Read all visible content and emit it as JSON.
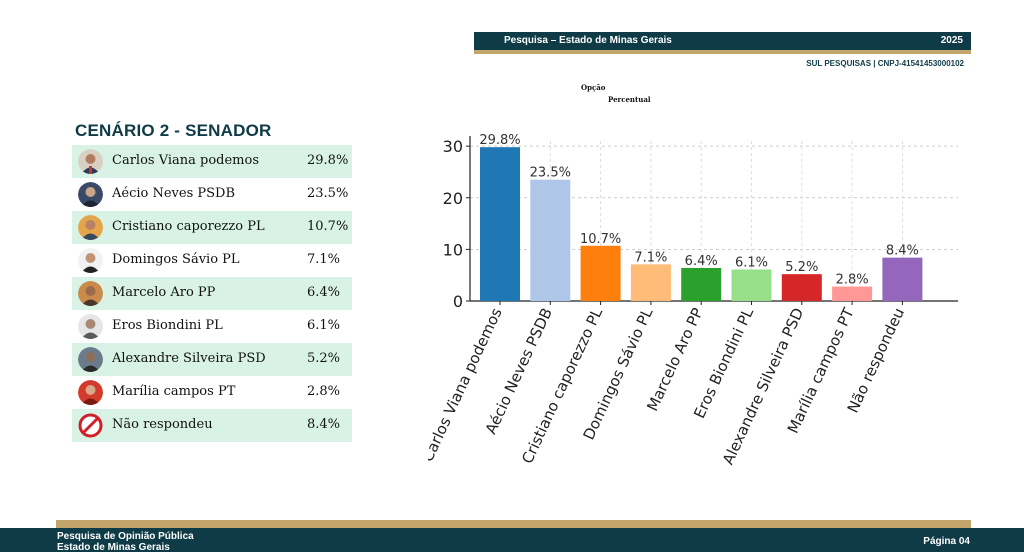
{
  "header": {
    "title": "Pesquisa – Estado de Minas Gerais",
    "year": "2025",
    "subtitle": "SUL PESQUISAS | CNPJ-41541453000102"
  },
  "chart_headers": {
    "opcao": "Opção",
    "percentual": "Percentual"
  },
  "scenario": {
    "title": "CENÁRIO 2 - SENADOR",
    "rows": [
      {
        "name": "Carlos Viana podemos",
        "pct": "29.8%"
      },
      {
        "name": "Aécio Neves PSDB",
        "pct": "23.5%"
      },
      {
        "name": "Cristiano caporezzo PL",
        "pct": "10.7%"
      },
      {
        "name": "Domingos Sávio PL",
        "pct": "7.1%"
      },
      {
        "name": "Marcelo Aro PP",
        "pct": "6.4%"
      },
      {
        "name": "Eros Biondini PL",
        "pct": "6.1%"
      },
      {
        "name": "Alexandre Silveira PSD",
        "pct": "5.2%"
      },
      {
        "name": "Marília campos PT",
        "pct": "2.8%"
      },
      {
        "name": "Não respondeu",
        "pct": "8.4%"
      }
    ]
  },
  "chart_data": {
    "type": "bar",
    "categories": [
      "Carlos Viana podemos",
      "Aécio Neves PSDB",
      "Cristiano caporezzo PL",
      "Domingos Sávio PL",
      "Marcelo Aro PP",
      "Eros Biondini PL",
      "Alexandre Silveira PSD",
      "Marília campos PT",
      "Não respondeu"
    ],
    "values": [
      29.8,
      23.5,
      10.7,
      7.1,
      6.4,
      6.1,
      5.2,
      2.8,
      8.4
    ],
    "labels": [
      "29.8%",
      "23.5%",
      "10.7%",
      "7.1%",
      "6.4%",
      "6.1%",
      "5.2%",
      "2.8%",
      "8.4%"
    ],
    "colors": [
      "#1f77b4",
      "#aec7e8",
      "#ff7f0e",
      "#ffbb78",
      "#2ca02c",
      "#98df8a",
      "#d62728",
      "#ff9896",
      "#9467bd"
    ],
    "yticks": [
      0,
      10,
      20,
      30
    ],
    "ylim": [
      0,
      31
    ],
    "ylabel": "",
    "grid": true
  },
  "footer": {
    "line1": "Pesquisa de Opinião Pública",
    "line2": "Estado de Minas Gerais",
    "page": "Página 04"
  }
}
